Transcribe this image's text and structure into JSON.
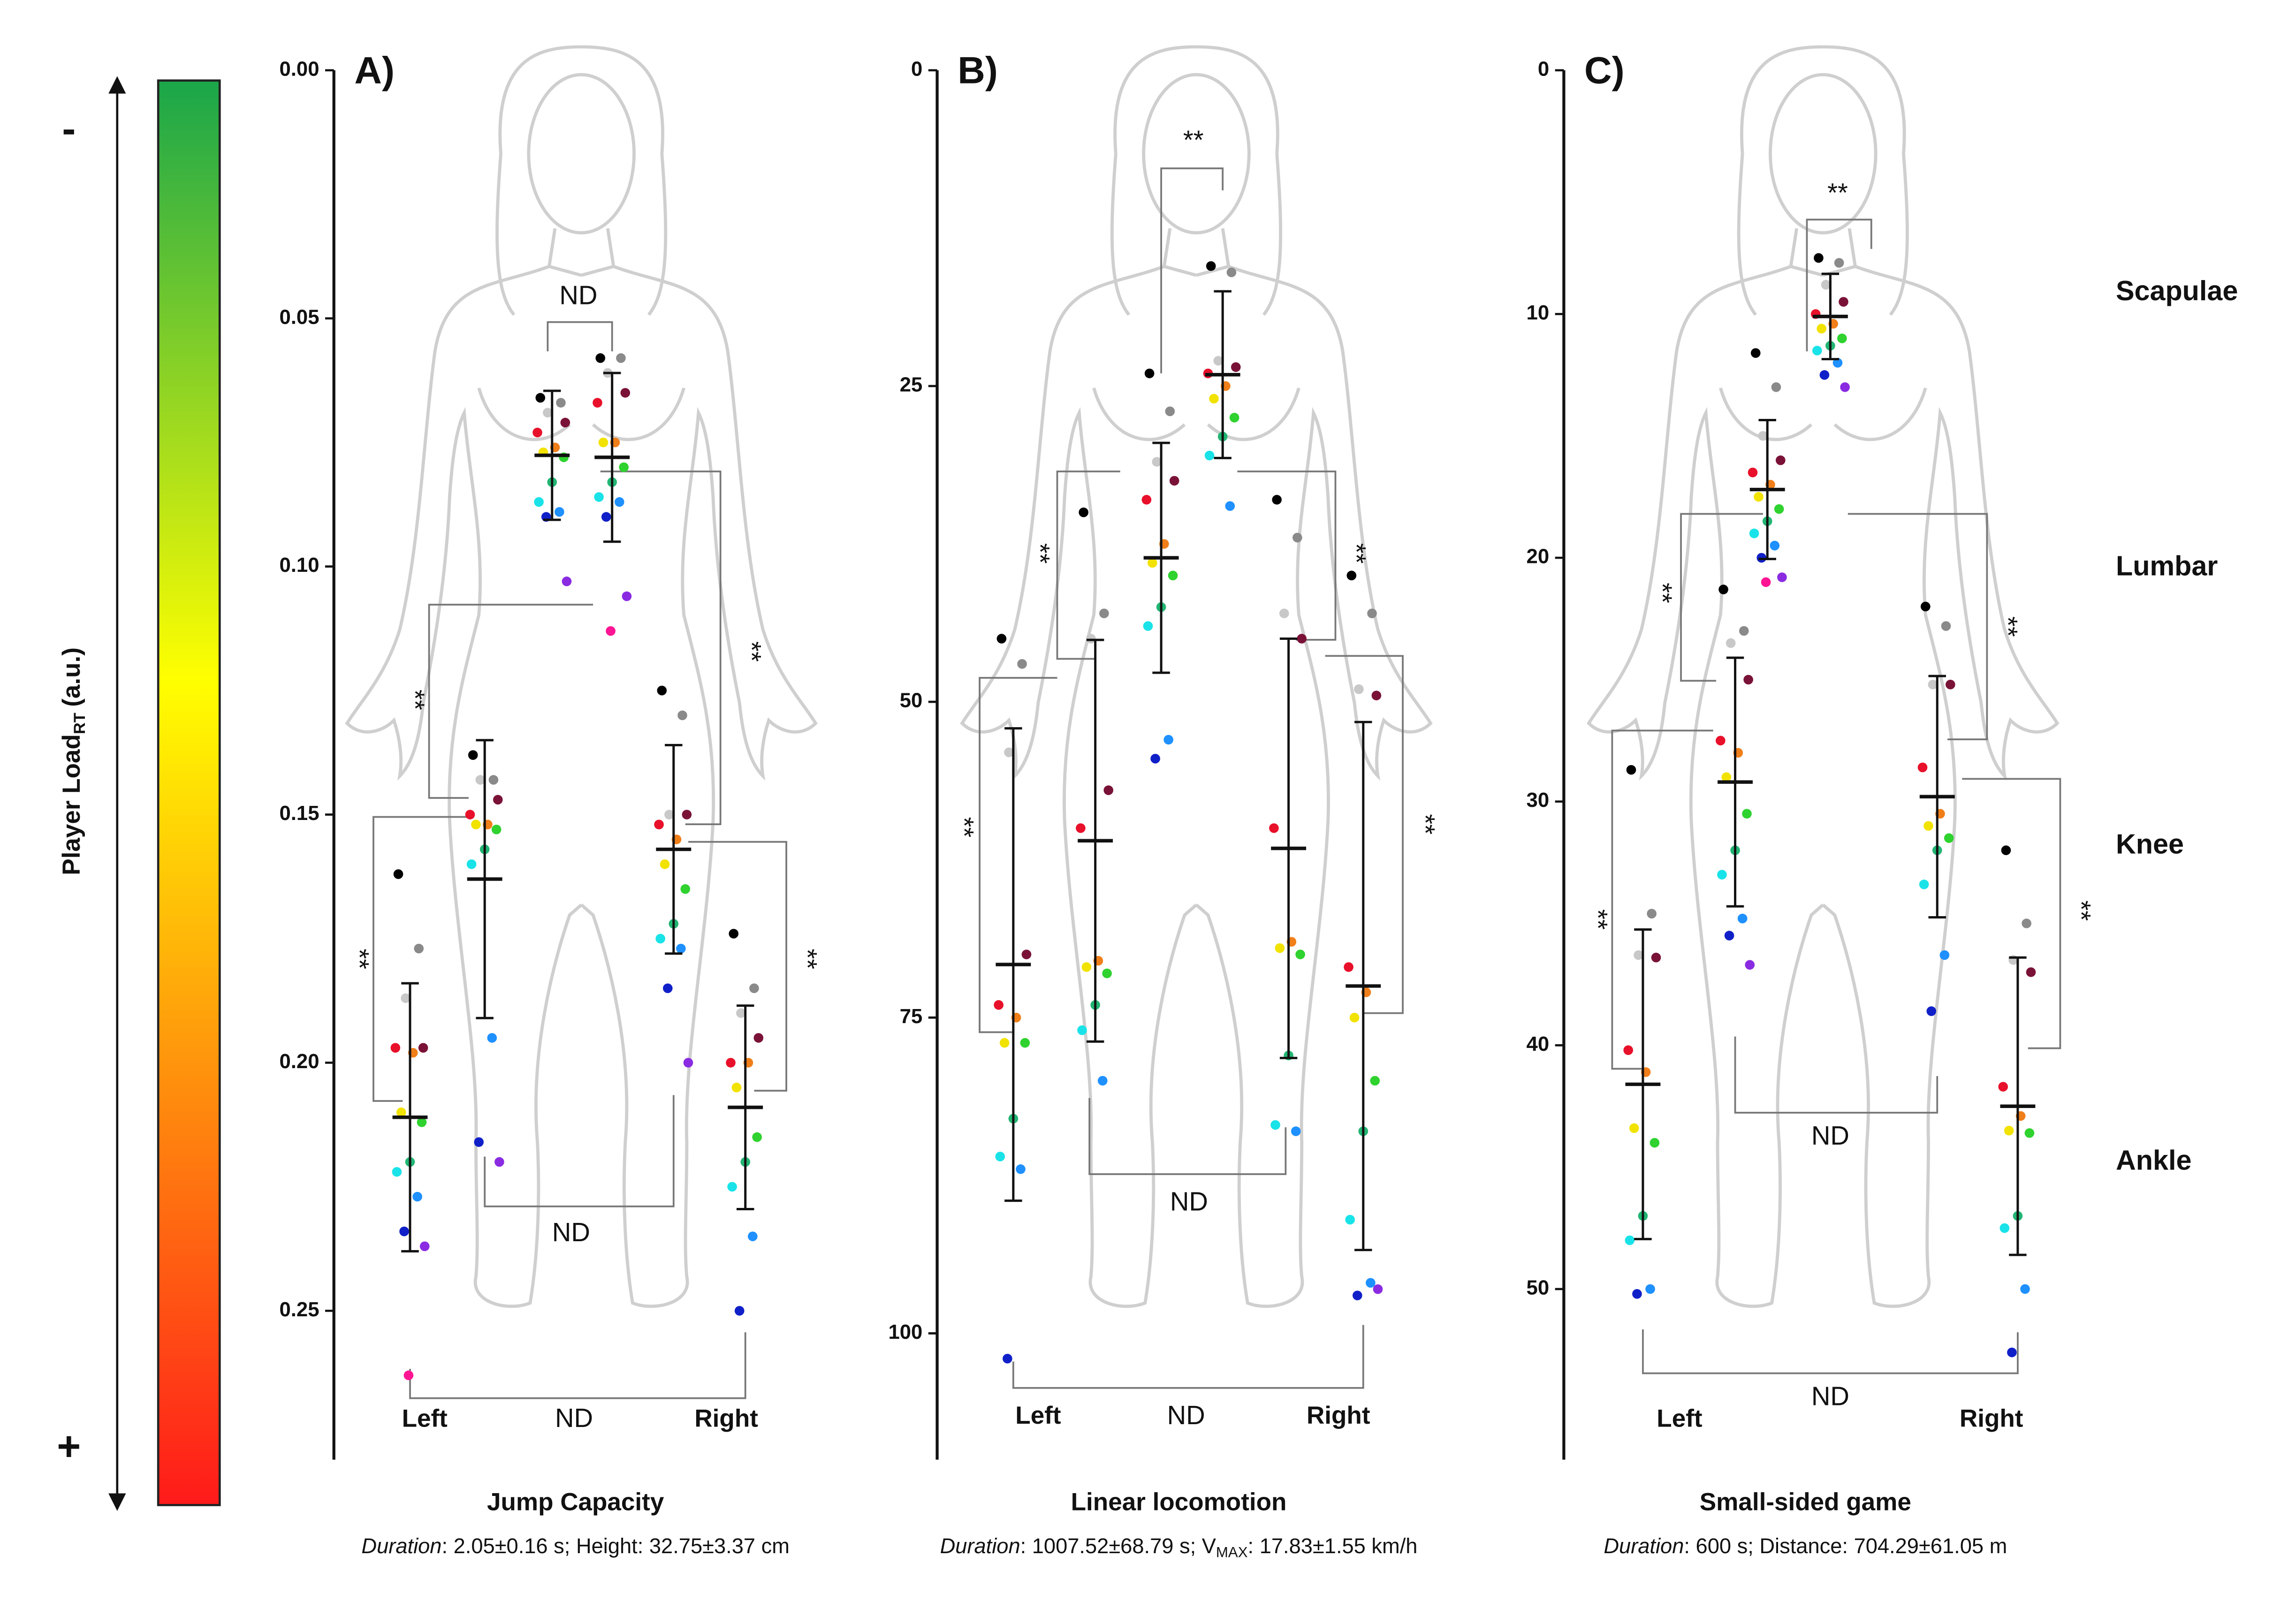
{
  "colorbar": {
    "axis_label": "Player Load",
    "subscript": "RT",
    "unit": "(a.u.)",
    "top_sign": "-",
    "bottom_sign": "+",
    "colors": [
      "#1aa64a",
      "#ffff00",
      "#ff1a1a"
    ]
  },
  "region_labels": [
    "Scapulae",
    "Lumbar",
    "Knee",
    "Ankle"
  ],
  "point_colors": [
    "#000000",
    "#8a8a8a",
    "#c8c8c8",
    "#7a1238",
    "#e8102a",
    "#f07f1a",
    "#f2e200",
    "#2fd22f",
    "#22b573",
    "#19e3e8",
    "#1e90ff",
    "#1020c8",
    "#8a2be2",
    "#ff1493"
  ],
  "chart_data": [
    {
      "type": "scatter",
      "title": "A)",
      "xlabel": "Jump Capacity",
      "caption": [
        {
          "text": "Duration",
          "style": "italic"
        },
        {
          "text": ": 2.05±0.16 s; Height: 32.75±3.37 cm",
          "style": "normal"
        }
      ],
      "ylim": [
        0,
        0.28
      ],
      "y_inverted": true,
      "yticks": [
        {
          "value": 0,
          "label": "0.00"
        },
        0.05,
        {
          "value": 0.1,
          "label": "0.10"
        },
        0.15,
        {
          "value": 0.2,
          "label": "0.20"
        },
        0.25
      ],
      "side_labels": [
        "Left",
        "Right"
      ],
      "annotations": [
        "ND",
        "**",
        "**",
        "**",
        "**",
        "ND",
        "ND"
      ],
      "groups": [
        {
          "mean": 0.078,
          "sd": 0.017,
          "points": [
            0.058,
            0.058,
            0.061,
            0.065,
            0.067,
            0.075,
            0.075,
            0.08,
            0.083,
            0.086,
            0.087,
            0.09,
            0.106,
            0.113
          ]
        },
        {
          "mean": 0.0776,
          "sd": 0.013,
          "points": [
            0.066,
            0.067,
            0.069,
            0.071,
            0.073,
            0.076,
            0.077,
            0.078,
            0.083,
            0.087,
            0.089,
            0.09,
            0.103
          ]
        },
        {
          "mean": 0.163,
          "sd": 0.028,
          "points": [
            0.138,
            0.143,
            0.143,
            0.147,
            0.15,
            0.152,
            0.152,
            0.153,
            0.157,
            0.16,
            0.195,
            0.216,
            0.22
          ]
        },
        {
          "mean": 0.157,
          "sd": 0.021,
          "points": [
            0.125,
            0.13,
            0.15,
            0.15,
            0.152,
            0.155,
            0.16,
            0.165,
            0.172,
            0.175,
            0.177,
            0.185,
            0.2
          ]
        },
        {
          "mean": 0.211,
          "sd": 0.027,
          "points": [
            0.162,
            0.177,
            0.187,
            0.197,
            0.197,
            0.198,
            0.21,
            0.212,
            0.22,
            0.222,
            0.227,
            0.234,
            0.237,
            0.263
          ]
        },
        {
          "mean": 0.209,
          "sd": 0.0205,
          "points": [
            0.174,
            0.185,
            0.19,
            0.195,
            0.2,
            0.2,
            0.205,
            0.215,
            0.22,
            0.225,
            0.235,
            0.25
          ]
        }
      ]
    },
    {
      "type": "scatter",
      "title": "B)",
      "xlabel": "Linear locomotion",
      "caption": [
        {
          "text": "Duration",
          "style": "italic"
        },
        {
          "text": ": 1007.52±68.79 s; V",
          "style": "normal"
        },
        {
          "text": "MAX",
          "style": "sub"
        },
        {
          "text": ": 17.83±1.55 km/h",
          "style": "normal"
        }
      ],
      "ylim": [
        0,
        110
      ],
      "y_inverted": true,
      "yticks": [
        0,
        25,
        50,
        75,
        100
      ],
      "side_labels": [
        "Left",
        "Right"
      ],
      "annotations": [
        "**",
        "**",
        "**",
        "**",
        "**",
        "ND",
        "ND"
      ],
      "groups": [
        {
          "mean": 24.1,
          "sd": 6.6,
          "points": [
            15.5,
            16,
            23,
            23.5,
            24,
            25,
            26,
            27.5,
            29,
            30.5,
            34.5
          ]
        },
        {
          "mean": 38.6,
          "sd": 9.1,
          "points": [
            24,
            27,
            31,
            32.5,
            34,
            37.5,
            39,
            40,
            42.5,
            44,
            53,
            54.5
          ]
        },
        {
          "mean": 61,
          "sd": 15.9,
          "points": [
            35,
            43,
            45,
            57,
            60,
            70.5,
            71,
            71.5,
            74,
            76,
            80
          ]
        },
        {
          "mean": 61.6,
          "sd": 16.6,
          "points": [
            34,
            37,
            43,
            45,
            60,
            69,
            69.5,
            70,
            78,
            83.5,
            84
          ]
        },
        {
          "mean": 70.8,
          "sd": 18.7,
          "points": [
            45,
            47,
            54,
            70,
            74,
            75,
            77,
            77,
            83,
            86,
            87,
            102
          ]
        },
        {
          "mean": 72.5,
          "sd": 20.9,
          "points": [
            40,
            43,
            49,
            49.5,
            71,
            73,
            75,
            80,
            84,
            91,
            96,
            97,
            96.5
          ]
        }
      ]
    },
    {
      "type": "scatter",
      "title": "C)",
      "xlabel": "Small-sided game",
      "caption": [
        {
          "text": "Duration",
          "style": "italic"
        },
        {
          "text": ": 600 s; Distance: 704.29±61.05 m",
          "style": "normal"
        }
      ],
      "ylim": [
        0,
        57
      ],
      "y_inverted": true,
      "yticks": [
        0,
        10,
        20,
        30,
        40,
        50
      ],
      "side_labels": [
        "Left",
        "Right"
      ],
      "annotations": [
        "**",
        "**",
        "**",
        "**",
        "**",
        "ND",
        "ND"
      ],
      "groups": [
        {
          "mean": 10.1,
          "sd": 1.75,
          "points": [
            7.7,
            7.9,
            8.8,
            9.5,
            10,
            10.4,
            10.6,
            11,
            11.3,
            11.5,
            12,
            12.5,
            13
          ]
        },
        {
          "mean": 17.2,
          "sd": 2.85,
          "points": [
            11.6,
            13,
            15,
            16,
            16.5,
            17,
            17.5,
            18,
            18.5,
            19,
            19.5,
            20,
            20.8,
            21
          ]
        },
        {
          "mean": 29.2,
          "sd": 5.1,
          "points": [
            21.3,
            23,
            23.5,
            25,
            27.5,
            28,
            29,
            30.5,
            32,
            33,
            34.8,
            35.5,
            36.7
          ]
        },
        {
          "mean": 29.8,
          "sd": 4.95,
          "points": [
            22,
            22.8,
            25.2,
            25.2,
            28.6,
            30.5,
            31,
            31.5,
            32,
            33.4,
            36.3,
            38.6
          ]
        },
        {
          "mean": 41.6,
          "sd": 6.35,
          "points": [
            28.7,
            34.6,
            36.3,
            36.4,
            40.2,
            41.1,
            43.4,
            44,
            47,
            48,
            50,
            50.2
          ]
        },
        {
          "mean": 42.5,
          "sd": 6.1,
          "points": [
            32,
            35,
            36.5,
            37,
            41.7,
            42.9,
            43.5,
            43.6,
            47,
            47.5,
            50,
            52.6
          ]
        }
      ]
    }
  ]
}
